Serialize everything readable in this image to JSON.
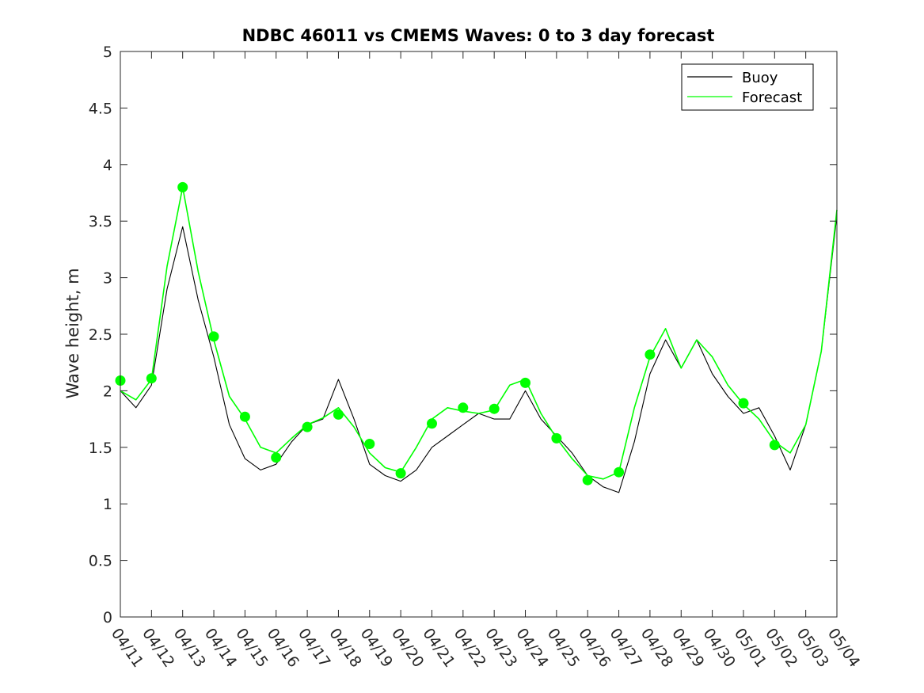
{
  "chart_data": {
    "type": "line",
    "title": "NDBC 46011 vs CMEMS Waves: 0 to 3 day forecast",
    "xlabel": "",
    "ylabel": "Wave height, m",
    "xlim": [
      "04/11",
      "05/04"
    ],
    "ylim": [
      0,
      5
    ],
    "yticks": [
      0,
      0.5,
      1,
      1.5,
      2,
      2.5,
      3,
      3.5,
      4,
      4.5,
      5
    ],
    "ytick_labels": [
      "0",
      "0.5",
      "1",
      "1.5",
      "2",
      "2.5",
      "3",
      "3.5",
      "4",
      "4.5",
      "5"
    ],
    "xtick_labels": [
      "04/11",
      "04/12",
      "04/13",
      "04/14",
      "04/15",
      "04/16",
      "04/17",
      "04/18",
      "04/19",
      "04/20",
      "04/21",
      "04/22",
      "04/23",
      "04/24",
      "04/25",
      "04/26",
      "04/27",
      "04/28",
      "04/29",
      "04/30",
      "05/01",
      "05/02",
      "05/03",
      "05/04"
    ],
    "grid": false,
    "legend": {
      "placement": "top-right",
      "entries": [
        "Buoy",
        "Forecast"
      ]
    },
    "colors": {
      "buoy": "#000000",
      "forecast": "#00ff00"
    },
    "series": [
      {
        "name": "Buoy",
        "style": "line",
        "x_days_from_0411": [
          0,
          0.5,
          1,
          1.5,
          2,
          2.5,
          3,
          3.5,
          4,
          4.5,
          5,
          5.5,
          6,
          6.5,
          7,
          7.5,
          8,
          8.5,
          9,
          9.5,
          10,
          10.5,
          11,
          11.5,
          12,
          12.5,
          13,
          13.5,
          14,
          14.5,
          15,
          15.5,
          16,
          16.5,
          17,
          17.5,
          18,
          18.5,
          19,
          19.5,
          20,
          20.5,
          21,
          21.5,
          22,
          22.5,
          23
        ],
        "values": [
          2.0,
          1.85,
          2.05,
          2.9,
          3.45,
          2.8,
          2.3,
          1.7,
          1.4,
          1.3,
          1.35,
          1.55,
          1.7,
          1.75,
          2.1,
          1.75,
          1.35,
          1.25,
          1.2,
          1.3,
          1.5,
          1.6,
          1.7,
          1.8,
          1.75,
          1.75,
          2.0,
          1.75,
          1.6,
          1.45,
          1.25,
          1.15,
          1.1,
          1.55,
          2.15,
          2.45,
          2.2,
          2.45,
          2.15,
          1.95,
          1.8,
          1.85,
          1.6,
          1.3,
          1.7,
          2.35,
          3.55
        ]
      },
      {
        "name": "Forecast",
        "style": "line",
        "x_days_from_0411": [
          0,
          0.5,
          1,
          1.5,
          2,
          2.5,
          3,
          3.5,
          4,
          4.5,
          5,
          5.5,
          6,
          6.5,
          7,
          7.5,
          8,
          8.5,
          9,
          9.5,
          10,
          10.5,
          11,
          11.5,
          12,
          12.5,
          13,
          13.5,
          14,
          14.5,
          15,
          15.5,
          16,
          16.5,
          17,
          17.5,
          18,
          18.5,
          19,
          19.5,
          20,
          20.5,
          21,
          21.5,
          22,
          22.5,
          23
        ],
        "values": [
          2.0,
          1.92,
          2.1,
          3.1,
          3.8,
          3.05,
          2.45,
          1.95,
          1.75,
          1.5,
          1.45,
          1.58,
          1.7,
          1.76,
          1.85,
          1.68,
          1.45,
          1.32,
          1.28,
          1.5,
          1.75,
          1.85,
          1.82,
          1.8,
          1.83,
          2.05,
          2.1,
          1.8,
          1.58,
          1.4,
          1.25,
          1.22,
          1.28,
          1.85,
          2.3,
          2.55,
          2.2,
          2.45,
          2.3,
          2.05,
          1.88,
          1.75,
          1.55,
          1.45,
          1.7,
          2.35,
          3.6
        ]
      },
      {
        "name": "",
        "style": "markers",
        "x_days_from_0411": [
          0,
          1,
          2,
          3,
          4,
          5,
          6,
          7,
          8,
          9,
          10,
          11,
          12,
          13,
          14,
          15,
          16,
          17,
          18,
          19,
          20,
          21
        ],
        "values": [
          2.09,
          2.11,
          3.8,
          2.48,
          1.77,
          1.41,
          1.68,
          1.79,
          1.53,
          1.27,
          1.71,
          1.85,
          1.84,
          2.07,
          1.58,
          1.21,
          1.28,
          2.32,
          null,
          null,
          1.89,
          1.52
        ]
      }
    ]
  }
}
